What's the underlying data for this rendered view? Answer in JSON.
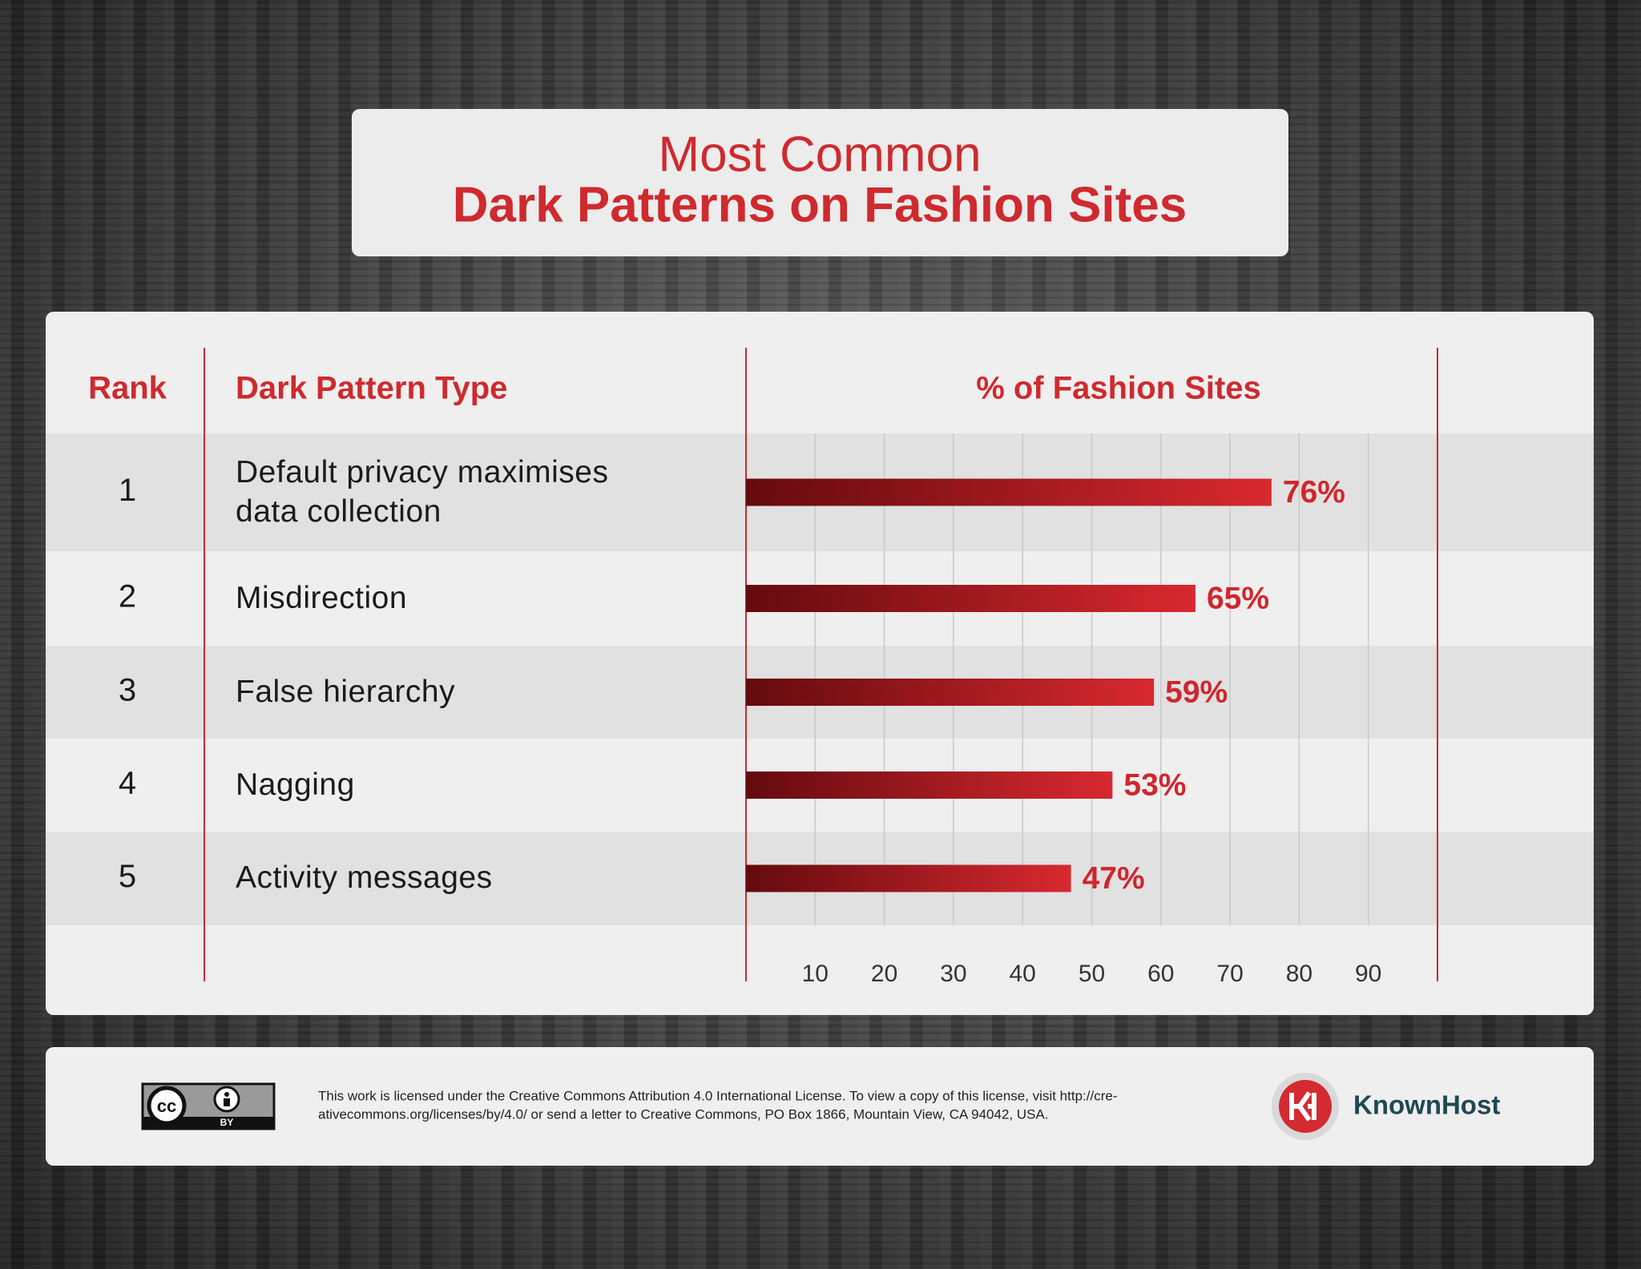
{
  "chart_data": {
    "type": "bar",
    "title": [
      "Most Common",
      "Dark Patterns on Fashion Sites"
    ],
    "column_headers": [
      "Rank",
      "Dark Pattern Type",
      "% of Fashion Sites"
    ],
    "ranks": [
      1,
      2,
      3,
      4,
      5
    ],
    "categories": [
      "Default privacy maximises data collection",
      "Misdirection",
      "False hierarchy",
      "Nagging",
      "Activity messages"
    ],
    "values": [
      76,
      65,
      59,
      53,
      47
    ],
    "value_labels": [
      "76%",
      "65%",
      "59%",
      "53%",
      "47%"
    ],
    "bar_gradient": [
      "#640a0e",
      "#d8292f"
    ],
    "xlim": [
      0,
      100
    ],
    "xticks": [
      10,
      20,
      30,
      40,
      50,
      60,
      70,
      80,
      90
    ],
    "grid": true
  },
  "footer": {
    "badge": [
      "cc",
      "BY"
    ],
    "license_lines": [
      "This work is licensed under the Creative Commons Attribution 4.0 International License. To view a copy of this license, visit http://cre-",
      "ativecommons.org/licenses/by/4.0/ or send a letter to Creative Commons, PO Box 1866, Mountain View, CA 94042, USA."
    ],
    "brand": "KnownHost"
  }
}
